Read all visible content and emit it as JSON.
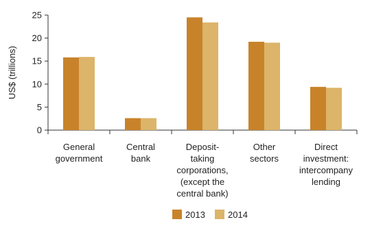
{
  "chart_data": {
    "type": "bar",
    "categories": [
      [
        "General",
        "government"
      ],
      [
        "Central",
        "bank"
      ],
      [
        "Deposit-",
        "taking",
        "corporations,",
        "(except the",
        "central bank)"
      ],
      [
        "Other",
        "sectors"
      ],
      [
        "Direct",
        "investment:",
        "intercompany",
        "lending"
      ]
    ],
    "series": [
      {
        "name": "2013",
        "color": "#c8832a",
        "values": [
          15.8,
          2.6,
          24.5,
          19.2,
          9.4
        ]
      },
      {
        "name": "2014",
        "color": "#dcb46a",
        "values": [
          15.9,
          2.6,
          23.4,
          19.0,
          9.2
        ]
      }
    ],
    "ylabel": "US$ (trillions)",
    "ylim": [
      0,
      25
    ],
    "yticks": [
      0,
      5,
      10,
      15,
      20,
      25
    ],
    "grid": false,
    "legend_position": "bottom-center"
  }
}
